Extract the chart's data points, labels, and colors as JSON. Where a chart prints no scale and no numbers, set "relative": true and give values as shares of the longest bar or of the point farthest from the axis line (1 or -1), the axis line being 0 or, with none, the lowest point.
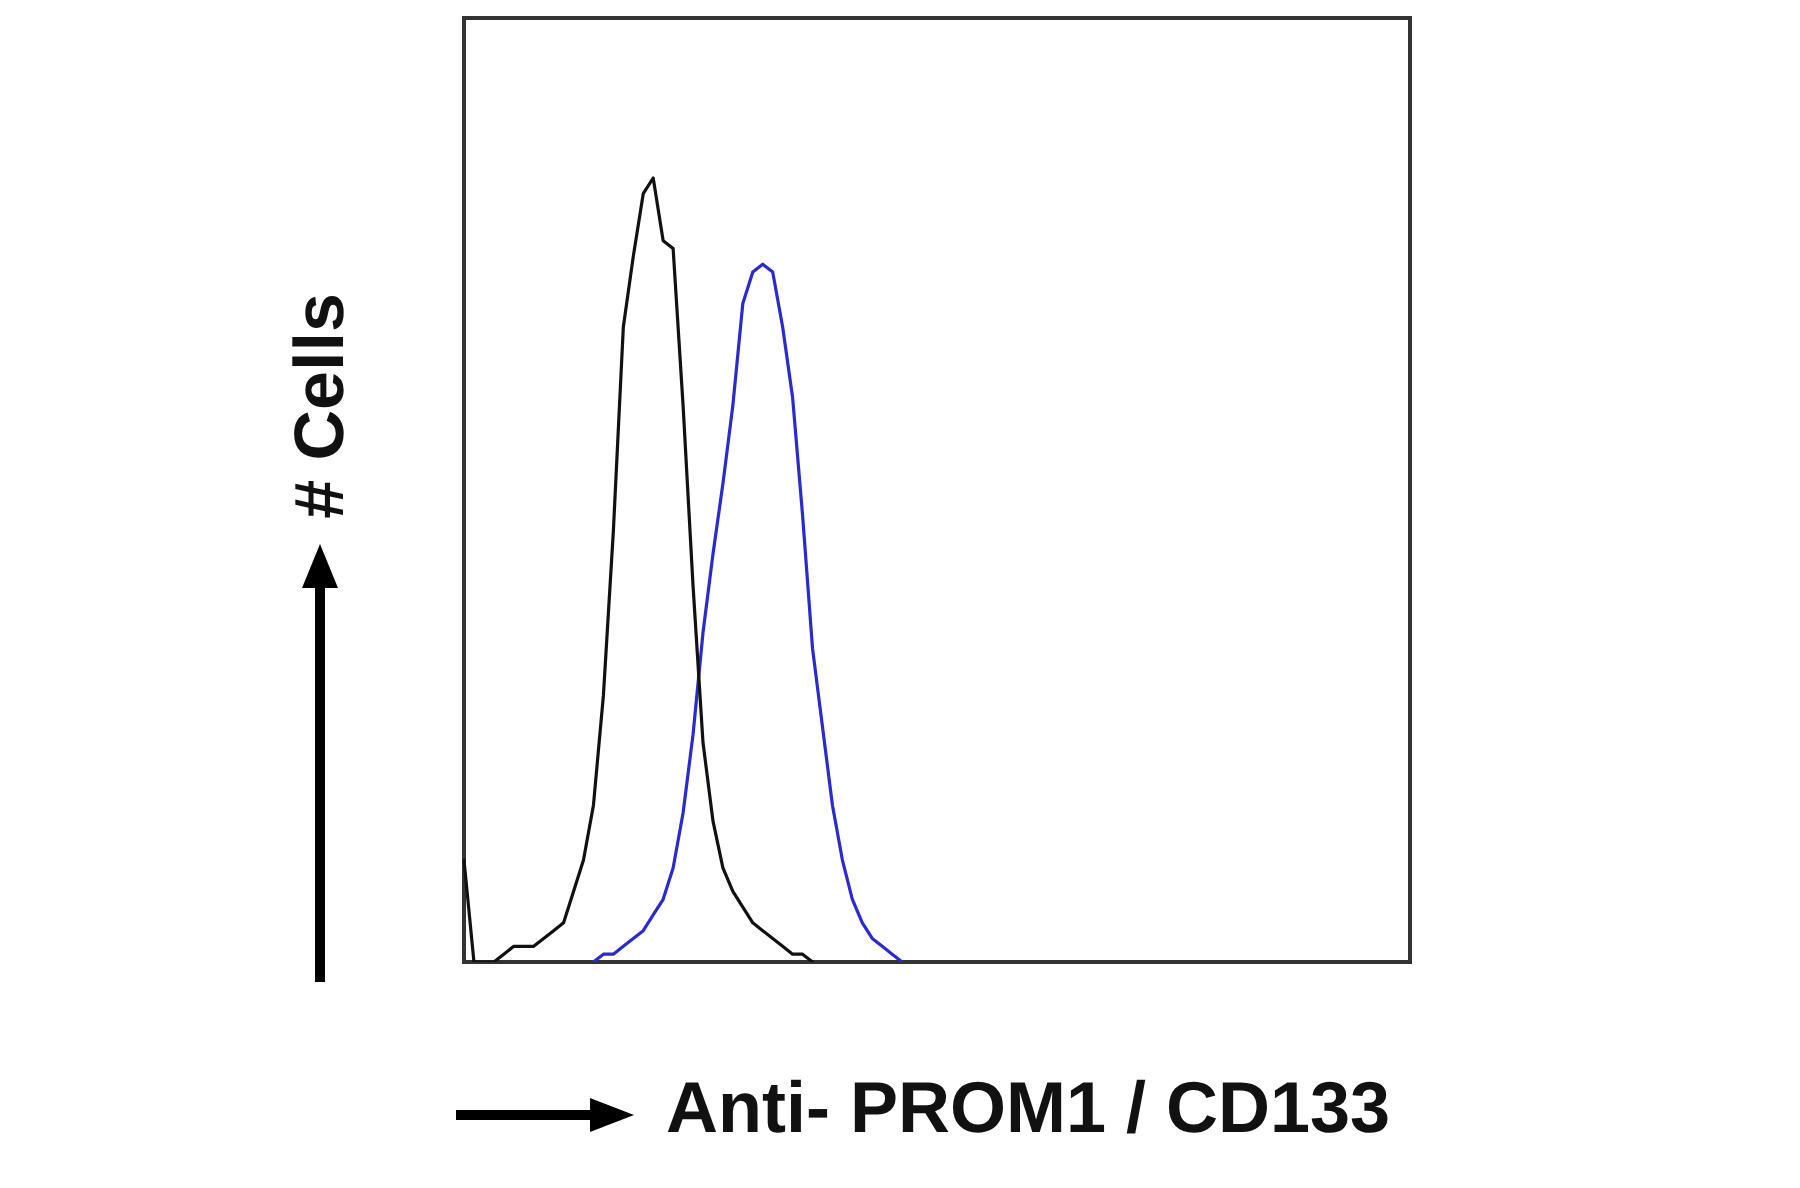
{
  "chart_data": {
    "type": "line",
    "relative": true,
    "marker": "none",
    "xlabel": "Anti- PROM1 / CD133",
    "ylabel": "# Cells",
    "categories": [
      null,
      null,
      null,
      null,
      null,
      null,
      null,
      null,
      null,
      null,
      null,
      null,
      null,
      null,
      null,
      null,
      null,
      null,
      null,
      null,
      null,
      null,
      null,
      null,
      null,
      null,
      null,
      null,
      null,
      null,
      null,
      null,
      null,
      null,
      null,
      null,
      null,
      null,
      null,
      null,
      null,
      null,
      null,
      null,
      null,
      null,
      null,
      null,
      null,
      null,
      null,
      null,
      null,
      null,
      null,
      null,
      null,
      null,
      null,
      null,
      null,
      null,
      null,
      null,
      null,
      null,
      null,
      null,
      null,
      null,
      null,
      null,
      null,
      null,
      null,
      null,
      null,
      null,
      null,
      null,
      null,
      null,
      null,
      null,
      null,
      null,
      null,
      null,
      null,
      null,
      null,
      null,
      null,
      null,
      null,
      null
    ],
    "series": [
      {
        "color": "#111111",
        "values": [
          0.13,
          0,
          0,
          0,
          0.01,
          0.02,
          0.02,
          0.02,
          0.03,
          0.04,
          0.05,
          0.09,
          0.13,
          0.2,
          0.34,
          0.55,
          0.81,
          0.9,
          0.98,
          1,
          0.92,
          0.91,
          0.71,
          0.48,
          0.28,
          0.18,
          0.12,
          0.09,
          0.07,
          0.05,
          0.04,
          0.03,
          0.02,
          0.01,
          0.01,
          0,
          null,
          null,
          null,
          null,
          null,
          null,
          null,
          null,
          null,
          null,
          null,
          null,
          null,
          null,
          null,
          null,
          null,
          null,
          null,
          null,
          null,
          null,
          null,
          null,
          null,
          null,
          null,
          null,
          null,
          null,
          null,
          null,
          null,
          null,
          null,
          null,
          null,
          null,
          null,
          null,
          null,
          null,
          null,
          null,
          null,
          null,
          null,
          null,
          null,
          null,
          null,
          null,
          null,
          null,
          null,
          null,
          null,
          null,
          null,
          null
        ]
      },
      {
        "color": "#2b2bcc",
        "values": [
          null,
          null,
          null,
          null,
          null,
          null,
          null,
          null,
          null,
          null,
          null,
          null,
          null,
          0,
          0.01,
          0.01,
          0.02,
          0.03,
          0.04,
          0.06,
          0.08,
          0.12,
          0.19,
          0.29,
          0.42,
          0.52,
          0.61,
          0.71,
          0.84,
          0.88,
          0.89,
          0.88,
          0.81,
          0.72,
          0.57,
          0.4,
          0.3,
          0.2,
          0.13,
          0.08,
          0.05,
          0.03,
          0.02,
          0.01,
          0,
          null,
          null,
          null,
          null,
          null,
          null,
          null,
          null,
          null,
          null,
          null,
          null,
          null,
          null,
          null,
          null,
          null,
          null,
          null,
          null,
          null,
          null,
          null,
          null,
          null,
          null,
          null,
          null,
          null,
          null,
          null,
          null,
          null,
          null,
          null,
          null,
          null,
          null,
          null,
          null,
          null,
          null,
          null,
          null,
          null,
          null,
          null,
          null,
          null,
          null,
          null
        ]
      }
    ]
  }
}
